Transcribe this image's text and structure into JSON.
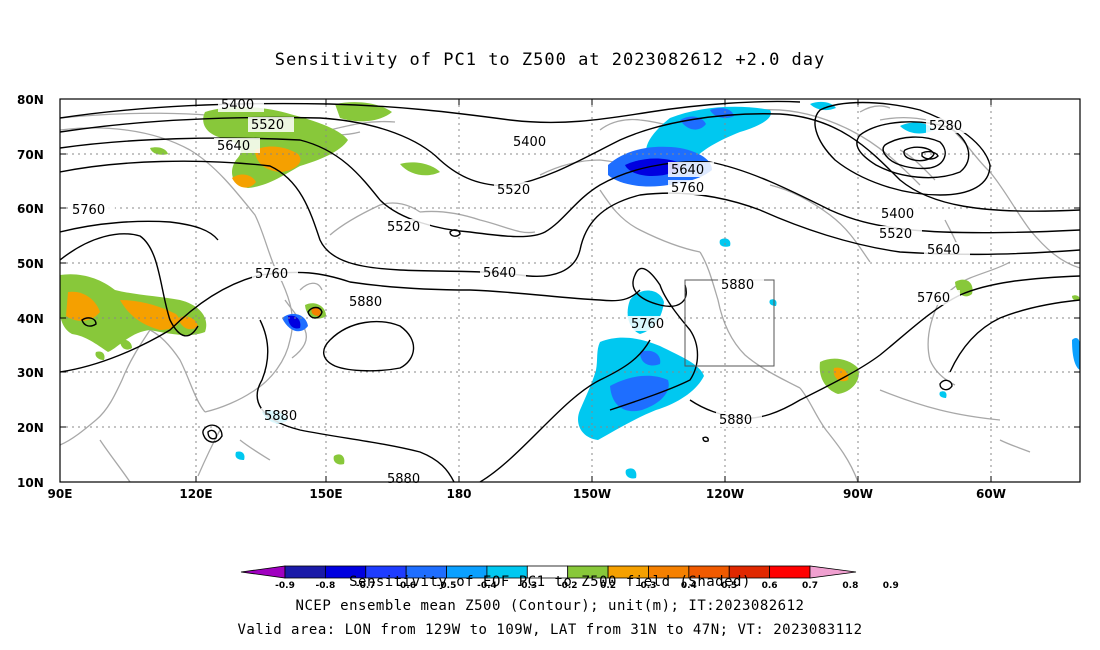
{
  "title": "Sensitivity of PC1 to Z500 at 2023082612 +2.0 day",
  "lat_labels": [
    "80N",
    "70N",
    "60N",
    "50N",
    "40N",
    "30N",
    "20N",
    "10N"
  ],
  "lon_labels": [
    "90E",
    "120E",
    "150E",
    "180",
    "150W",
    "120W",
    "90W",
    "60W"
  ],
  "contour_labels": [
    "5400",
    "5520",
    "5640",
    "5760",
    "5400",
    "5520",
    "5520",
    "5640",
    "5760",
    "5880",
    "5880",
    "5880",
    "5640",
    "5760",
    "5880",
    "5760",
    "5280",
    "5400",
    "5520",
    "5640",
    "5760",
    "5880"
  ],
  "colorbar": {
    "labels": [
      "-0.9",
      "-0.8",
      "-0.7",
      "-0.6",
      "-0.5",
      "-0.4",
      "-0.3",
      "-0.2",
      "0.2",
      "0.3",
      "0.4",
      "0.5",
      "0.6",
      "0.7",
      "0.8",
      "0.9"
    ],
    "colors": [
      "#a000c0",
      "#1a1aa8",
      "#0000e0",
      "#1e3cff",
      "#1e6eff",
      "#0aa0ff",
      "#00c8f0",
      "#ffffff",
      "#88c83a",
      "#f5a000",
      "#f58000",
      "#f05a00",
      "#e02800",
      "#ff0000",
      "#f0a0d0"
    ],
    "title": "Sensitivity of EOF PC1 to Z500 field (Shaded)"
  },
  "footer_line1": "NCEP ensemble mean Z500 (Contour); unit(m); IT:2023082612",
  "footer_line2": "Valid area: LON from 129W to 109W, LAT from 31N to 47N; VT: 2023083112"
}
